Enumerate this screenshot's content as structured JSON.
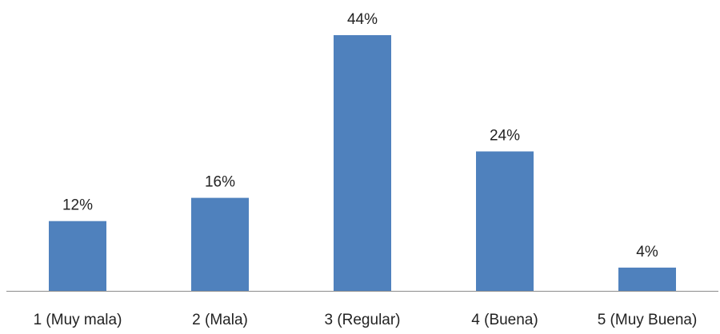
{
  "chart_data": {
    "type": "bar",
    "categories": [
      "1 (Muy mala)",
      "2 (Mala)",
      "3 (Regular)",
      "4 (Buena)",
      "5 (Muy Buena)"
    ],
    "values": [
      12,
      16,
      44,
      24,
      4
    ],
    "value_labels": [
      "12%",
      "16%",
      "44%",
      "24%",
      "4%"
    ],
    "ylim": [
      0,
      44
    ],
    "grid": false,
    "legend": "none",
    "colors": {
      "bar": "#4F81BD",
      "axis": "#8C8C8C"
    }
  }
}
